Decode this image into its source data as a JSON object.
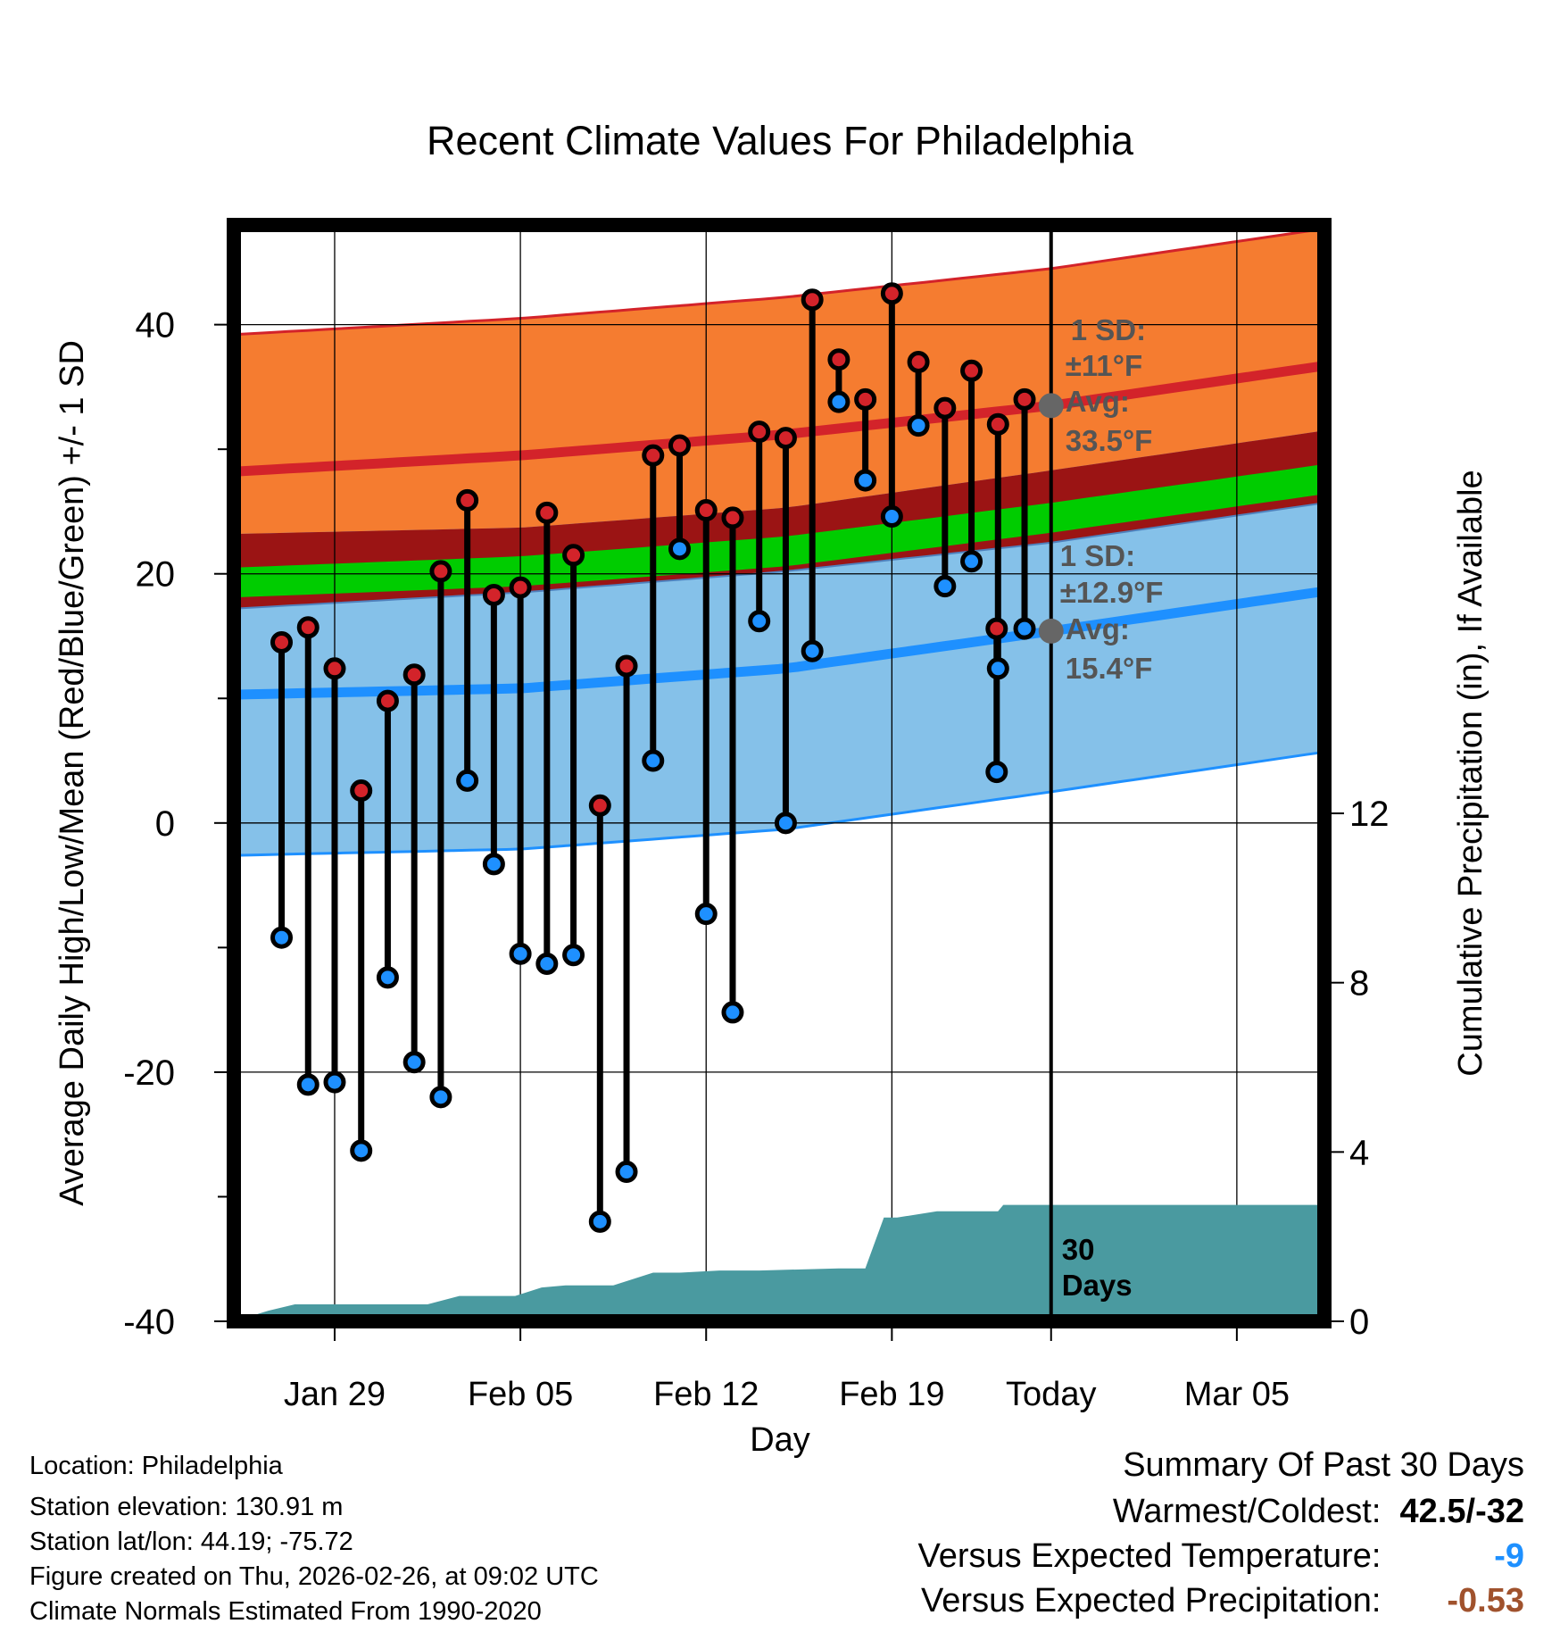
{
  "chart_data": {
    "type": "daily-climate",
    "title": "Recent Climate Values For Philadelphia",
    "xlabel": "Day",
    "ylabel_left": "Average Daily High/Low/Mean (Red/Blue/Green) +/- 1 SD",
    "ylabel_right": "Cumulative Precipitation (in), If Available",
    "ylim_left": [
      -40,
      48
    ],
    "ylim_right": [
      0,
      25.9
    ],
    "x_range_days": [
      -30.8,
      10.3
    ],
    "x_ticks": [
      {
        "day": -27,
        "label": "Jan 29"
      },
      {
        "day": -20,
        "label": "Feb 05"
      },
      {
        "day": -13,
        "label": "Feb 12"
      },
      {
        "day": -6,
        "label": "Feb 19"
      },
      {
        "day": 0,
        "label": "Today"
      },
      {
        "day": 7,
        "label": "Mar 05"
      }
    ],
    "y_ticks_left": [
      "40",
      "20",
      "0",
      "-20",
      "-40"
    ],
    "y_ticks_left_values": [
      40,
      20,
      0,
      -20,
      -40
    ],
    "y_ticks_right": [
      "12",
      "8",
      "4",
      "0"
    ],
    "y_ticks_right_values": [
      12,
      8,
      4,
      0
    ],
    "normals_x": [
      -30.8,
      -20,
      -10,
      0,
      10.3
    ],
    "normal_high": [
      28.2,
      29.5,
      31.2,
      33.5,
      36.7
    ],
    "normal_high_sd": 11,
    "normal_low": [
      10.3,
      10.8,
      12.4,
      15.4,
      18.6
    ],
    "normal_low_sd": 12.9,
    "normal_mean": [
      19.3,
      20.2,
      21.8,
      24.5,
      27.6
    ],
    "daily_days": [
      -29,
      -28,
      -27,
      -26,
      -25,
      -24,
      -23,
      -22,
      -21,
      -20,
      -19,
      -18,
      -17,
      -16,
      -15,
      -14,
      -13,
      -12,
      -11,
      -10,
      -9,
      -8,
      -7,
      -6,
      -5,
      -4,
      -3,
      -2,
      -1,
      -2.05
    ],
    "daily_high": [
      14.5,
      15.7,
      12.4,
      2.6,
      9.8,
      11.9,
      20.2,
      25.9,
      18.3,
      18.9,
      24.9,
      21.5,
      1.4,
      12.6,
      29.5,
      30.3,
      25.1,
      24.5,
      31.4,
      30.9,
      42.0,
      37.2,
      34.0,
      42.5,
      37.0,
      33.3,
      36.3,
      32.0,
      34.0,
      15.6
    ],
    "daily_low": [
      -9.2,
      -21.0,
      -20.8,
      -26.3,
      -12.4,
      -19.2,
      -22.0,
      3.4,
      -3.3,
      -10.5,
      -11.3,
      -10.6,
      -32.0,
      -28.0,
      5.0,
      22.0,
      -7.3,
      -15.2,
      16.2,
      0.0,
      13.8,
      33.8,
      27.5,
      24.6,
      31.9,
      19.0,
      21.0,
      12.4,
      15.6,
      4.1
    ],
    "precip_cumulative_x": [
      -30.8,
      -29.5,
      -28.5,
      -27,
      -25,
      -23.5,
      -22.3,
      -21,
      -20.2,
      -19.2,
      -18.3,
      -16.5,
      -15,
      -14,
      -12.5,
      -11,
      -8,
      -7,
      -6.3,
      -5.8,
      -4.3,
      -3,
      -2,
      -1.8,
      10.3
    ],
    "precip_cumulative": [
      0.0,
      0.25,
      0.4,
      0.4,
      0.4,
      0.4,
      0.6,
      0.6,
      0.6,
      0.8,
      0.85,
      0.85,
      1.15,
      1.15,
      1.2,
      1.2,
      1.25,
      1.25,
      2.45,
      2.45,
      2.6,
      2.6,
      2.6,
      2.75,
      2.75
    ],
    "annotations": {
      "high_sd_label": "1 SD:",
      "high_sd_value": "±11°F",
      "high_avg_label": "Avg:",
      "high_avg_value": "33.5°F",
      "low_sd_label": "1 SD:",
      "low_sd_value": "±12.9°F",
      "low_avg_label": "Avg:",
      "low_avg_value": "15.4°F",
      "window_label_1": "30",
      "window_label_2": "Days"
    }
  },
  "colors": {
    "high_band": "#f57c30",
    "high_line": "#d3232a",
    "low_band": "#85c1e9",
    "low_line": "#1e90ff",
    "overlap_band": "#9b1414",
    "mean_band": "#00cc00",
    "precip_fill": "#4a9aa0",
    "high_marker": "#d3232a",
    "low_marker": "#1e90ff",
    "annotation_text": "#555555",
    "temp_negative": "#1e90ff",
    "precip_negative": "#a0522d"
  },
  "footer": {
    "location": "Location: Philadelphia",
    "elevation": "Station elevation: 130.91 m",
    "latlon": "Station lat/lon: 44.19; -75.72",
    "created": "Figure created on Thu, 2026-02-26, at 09:02 UTC",
    "normals": "Climate Normals Estimated From 1990-2020"
  },
  "summary": {
    "title": "Summary Of Past 30 Days",
    "warm_cold_label": "Warmest/Coldest:",
    "warm_cold_value": "42.5/-32",
    "temp_label": "Versus Expected Temperature:",
    "temp_value": "-9",
    "precip_label": "Versus Expected Precipitation:",
    "precip_value": "-0.53"
  }
}
